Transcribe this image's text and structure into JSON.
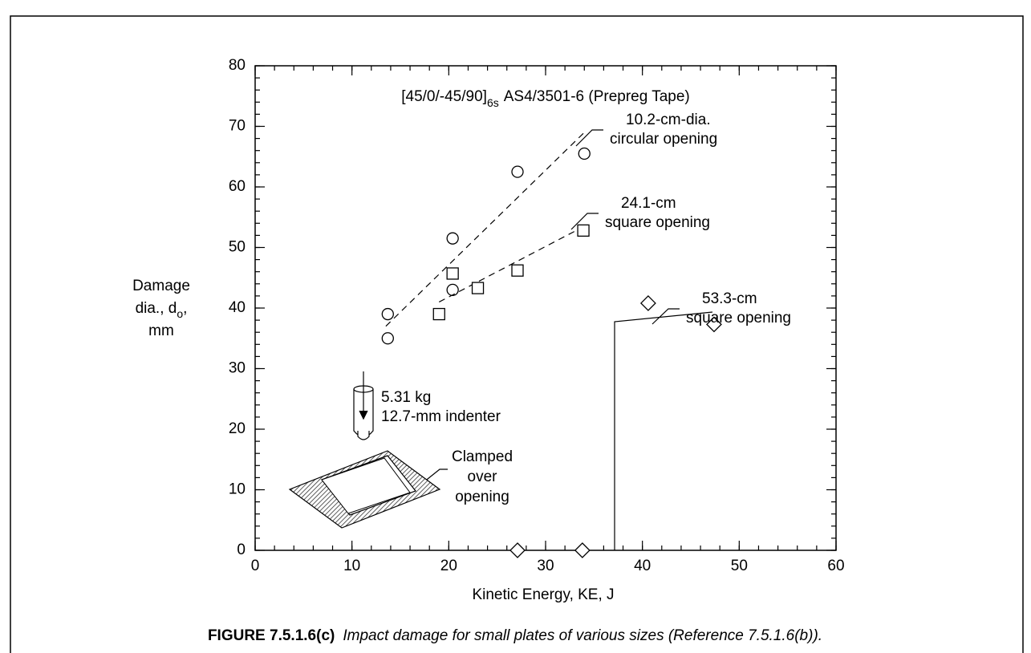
{
  "chart_data": {
    "type": "scatter",
    "annotation": {
      "main": "[45/0/-45/90]",
      "sub": "6s",
      "rest": "AS4/3501-6 (Prepreg Tape)"
    },
    "xlabel": "Kinetic Energy, KE, J",
    "ylabel": {
      "line1": "Damage",
      "line2": "dia., d",
      "line2_sub": "o",
      "line2_end": ",",
      "line3": "mm"
    },
    "xlim": [
      0,
      60
    ],
    "xticks": [
      0,
      10,
      20,
      30,
      40,
      50,
      60
    ],
    "xminor_step": 2,
    "ylim": [
      0,
      80
    ],
    "yticks": [
      0,
      10,
      20,
      30,
      40,
      50,
      60,
      70,
      80
    ],
    "yminor_step": 2,
    "series": [
      {
        "marker": "circle",
        "label": [
          "10.2-cm-dia.",
          "circular opening"
        ],
        "x": [
          13.7,
          13.7,
          20.4,
          20.4,
          27.1,
          34.0
        ],
        "y": [
          39.0,
          35.0,
          51.5,
          43.0,
          62.5,
          65.5
        ],
        "fit": {
          "x": [
            13.5,
            34.0
          ],
          "y": [
            37.0,
            69.0
          ]
        }
      },
      {
        "marker": "square",
        "label": [
          "24.1-cm",
          "square opening"
        ],
        "x": [
          19.0,
          20.4,
          23.0,
          27.1,
          33.9
        ],
        "y": [
          39.0,
          45.7,
          43.3,
          46.2,
          52.8
        ],
        "fit": {
          "x": [
            19.0,
            34.0
          ],
          "y": [
            41.0,
            53.5
          ]
        }
      },
      {
        "marker": "diamond",
        "label": [
          "53.3-cm",
          "square opening"
        ],
        "x": [
          27.1,
          33.8,
          40.6,
          47.4
        ],
        "y": [
          0,
          0,
          40.8,
          37.3
        ]
      }
    ],
    "inset": {
      "mass": "5.31 kg",
      "indenter": "12.7-mm indenter",
      "clamp": [
        "Clamped",
        "over",
        "opening"
      ]
    },
    "caption": {
      "label": "FIGURE 7.5.1.6(c)",
      "text": "Impact damage for small plates of various sizes (Reference 7.5.1.6(b))."
    }
  }
}
